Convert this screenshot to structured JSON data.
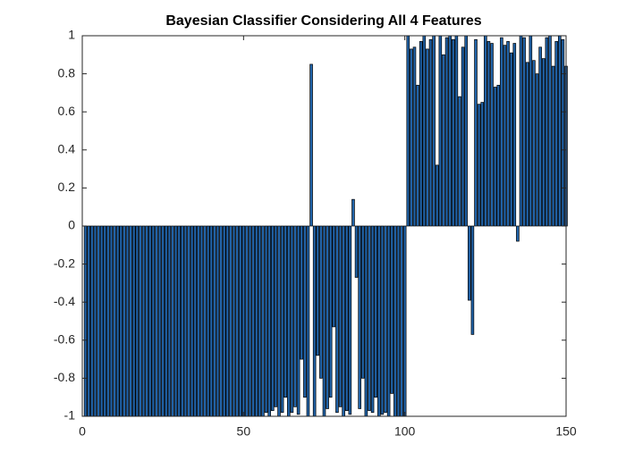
{
  "chart_data": {
    "type": "bar",
    "title": "Bayesian Classifier Considering All 4 Features",
    "x": [
      1,
      2,
      3,
      4,
      5,
      6,
      7,
      8,
      9,
      10,
      11,
      12,
      13,
      14,
      15,
      16,
      17,
      18,
      19,
      20,
      21,
      22,
      23,
      24,
      25,
      26,
      27,
      28,
      29,
      30,
      31,
      32,
      33,
      34,
      35,
      36,
      37,
      38,
      39,
      40,
      41,
      42,
      43,
      44,
      45,
      46,
      47,
      48,
      49,
      50,
      51,
      52,
      53,
      54,
      55,
      56,
      57,
      58,
      59,
      60,
      61,
      62,
      63,
      64,
      65,
      66,
      67,
      68,
      69,
      70,
      71,
      72,
      73,
      74,
      75,
      76,
      77,
      78,
      79,
      80,
      81,
      82,
      83,
      84,
      85,
      86,
      87,
      88,
      89,
      90,
      91,
      92,
      93,
      94,
      95,
      96,
      97,
      98,
      99,
      100,
      101,
      102,
      103,
      104,
      105,
      106,
      107,
      108,
      109,
      110,
      111,
      112,
      113,
      114,
      115,
      116,
      117,
      118,
      119,
      120,
      121,
      122,
      123,
      124,
      125,
      126,
      127,
      128,
      129,
      130,
      131,
      132,
      133,
      134,
      135,
      136,
      137,
      138,
      139,
      140,
      141,
      142,
      143,
      144,
      145,
      146,
      147,
      148,
      149,
      150
    ],
    "values": [
      -1,
      -1,
      -1,
      -1,
      -1,
      -1,
      -1,
      -1,
      -1,
      -1,
      -1,
      -1,
      -1,
      -1,
      -1,
      -1,
      -1,
      -1,
      -1,
      -1,
      -1,
      -1,
      -1,
      -1,
      -1,
      -1,
      -1,
      -1,
      -1,
      -1,
      -1,
      -1,
      -1,
      -1,
      -1,
      -1,
      -1,
      -1,
      -1,
      -1,
      -1,
      -1,
      -1,
      -1,
      -1,
      -1,
      -1,
      -1,
      -1,
      -1,
      -1,
      -1,
      -1,
      -1,
      -1,
      -1,
      -0.98,
      -1,
      -0.97,
      -0.95,
      -1,
      -0.98,
      -0.9,
      -1,
      -0.98,
      -0.95,
      -0.99,
      -0.7,
      -0.9,
      -1,
      0.85,
      -1,
      -0.68,
      -0.8,
      -1,
      -0.96,
      -0.9,
      -0.53,
      -0.98,
      -0.95,
      -1,
      -0.97,
      -0.99,
      0.14,
      -0.27,
      -0.96,
      -0.8,
      -1,
      -0.97,
      -0.98,
      -0.9,
      -1,
      -0.99,
      -0.98,
      -1,
      -0.88,
      -1,
      -1,
      -1,
      -1,
      1,
      0.93,
      0.94,
      0.74,
      0.97,
      1,
      0.93,
      0.98,
      1,
      0.32,
      1,
      0.9,
      0.99,
      1,
      0.98,
      1,
      0.68,
      0.94,
      1,
      -0.39,
      -0.57,
      0.98,
      0.64,
      0.65,
      1,
      0.97,
      0.96,
      0.73,
      0.74,
      0.99,
      0.95,
      0.97,
      0.91,
      0.96,
      -0.08,
      1,
      0.99,
      0.86,
      1,
      0.87,
      0.8,
      0.94,
      0.88,
      0.99,
      1,
      0.84,
      0.97,
      1,
      0.98,
      0.84
    ],
    "color": "#2163a8",
    "edgecolor": "#000000",
    "xlim": [
      0,
      150
    ],
    "xticks": [
      0,
      50,
      100,
      150
    ],
    "ylim": [
      -1,
      1
    ],
    "yticks": [
      -1,
      -0.8,
      -0.6,
      -0.4,
      -0.2,
      0,
      0.2,
      0.4,
      0.6,
      0.8,
      1
    ]
  }
}
